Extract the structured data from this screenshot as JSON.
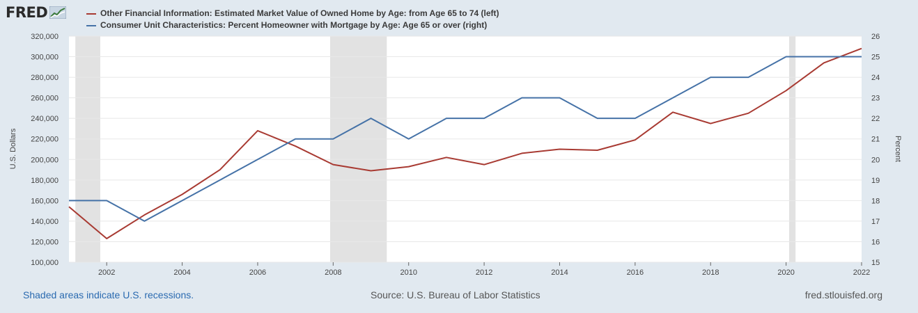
{
  "header": {
    "logo_text": "FRED",
    "logo_icon": "trend-chart-icon"
  },
  "legend": {
    "items": [
      {
        "label": "Other Financial Information: Estimated Market Value of Owned Home by Age: from Age 65 to 74 (left)",
        "color": "#a83a32"
      },
      {
        "label": "Consumer Unit Characteristics: Percent Homeowner with Mortgage by Age: Age 65 or over (right)",
        "color": "#4572a7"
      }
    ]
  },
  "footer": {
    "recessions_note": "Shaded areas indicate U.S. recessions.",
    "source": "Source: U.S. Bureau of Labor Statistics",
    "site": "fred.stlouisfed.org"
  },
  "chart_data": {
    "type": "line",
    "x": [
      2001,
      2002,
      2003,
      2004,
      2005,
      2006,
      2007,
      2008,
      2009,
      2010,
      2011,
      2012,
      2013,
      2014,
      2015,
      2016,
      2017,
      2018,
      2019,
      2020,
      2021,
      2022
    ],
    "xlim": [
      2001,
      2022
    ],
    "x_ticks": [
      "2002",
      "2004",
      "2006",
      "2008",
      "2010",
      "2012",
      "2014",
      "2016",
      "2018",
      "2020",
      "2022"
    ],
    "ylabel_left": "U.S. Dollars",
    "ylabel_right": "Percent",
    "ylim_left": [
      100000,
      320000
    ],
    "ylim_right": [
      15,
      26
    ],
    "y_ticks_left": [
      "100,000",
      "120,000",
      "140,000",
      "160,000",
      "180,000",
      "200,000",
      "220,000",
      "240,000",
      "260,000",
      "280,000",
      "300,000",
      "320,000"
    ],
    "y_ticks_right": [
      "15",
      "16",
      "17",
      "18",
      "19",
      "20",
      "21",
      "22",
      "23",
      "24",
      "25",
      "26"
    ],
    "grid": true,
    "recessions": [
      [
        2001.17,
        2001.83
      ],
      [
        2007.92,
        2009.42
      ],
      [
        2020.08,
        2020.25
      ]
    ],
    "series": [
      {
        "name": "Other Financial Information: Estimated Market Value of Owned Home by Age: from Age 65 to 74 (left)",
        "axis": "left",
        "color": "#a83a32",
        "values": [
          154000,
          123000,
          146000,
          166000,
          190000,
          228000,
          213000,
          195000,
          189000,
          193000,
          202000,
          195000,
          206000,
          210000,
          209000,
          219000,
          246000,
          235000,
          245000,
          267000,
          294000,
          308000
        ]
      },
      {
        "name": "Consumer Unit Characteristics: Percent Homeowner with Mortgage by Age: Age 65 or over (right)",
        "axis": "right",
        "color": "#4572a7",
        "values": [
          18,
          18,
          17,
          18,
          19,
          20,
          21,
          21,
          22,
          21,
          22,
          22,
          23,
          23,
          22,
          22,
          23,
          24,
          24,
          25,
          25,
          25
        ]
      }
    ]
  }
}
